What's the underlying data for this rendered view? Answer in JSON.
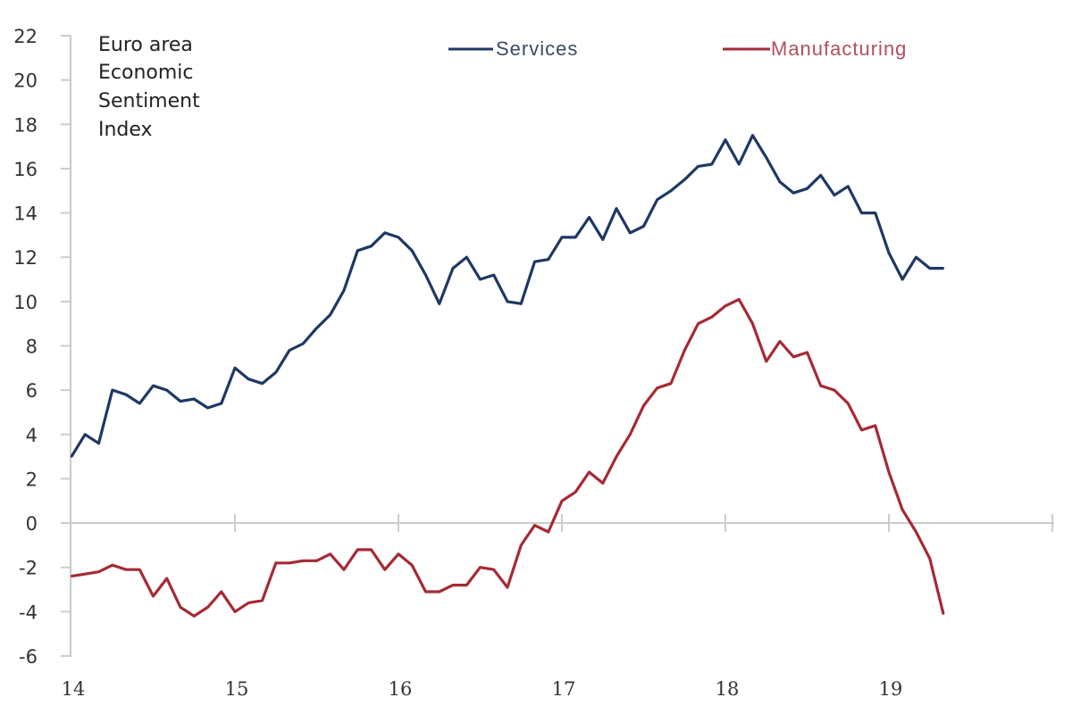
{
  "chart_data": {
    "type": "line",
    "title": [
      "Euro area",
      "Economic",
      "Sentiment",
      "Index"
    ],
    "xlabel": "",
    "ylabel": "",
    "ylim": [
      -6,
      22
    ],
    "yticks": [
      22,
      20,
      18,
      16,
      14,
      12,
      10,
      8,
      6,
      4,
      2,
      0,
      -2,
      -4,
      -6
    ],
    "xlim": [
      2014,
      2020
    ],
    "xticks": [
      {
        "value": 2014,
        "label": "14"
      },
      {
        "value": 2015,
        "label": "15"
      },
      {
        "value": 2016,
        "label": "16"
      },
      {
        "value": 2017,
        "label": "17"
      },
      {
        "value": 2018,
        "label": "18"
      },
      {
        "value": 2019,
        "label": "19"
      }
    ],
    "grid": false,
    "legend": "top",
    "x_start": 2014.0,
    "x_step_months": 1,
    "series": [
      {
        "name": "Services",
        "color": "#1f3864",
        "values": [
          3.0,
          4.0,
          3.6,
          6.0,
          5.8,
          5.4,
          6.2,
          6.0,
          5.5,
          5.6,
          5.2,
          5.4,
          7.0,
          6.5,
          6.3,
          6.8,
          7.8,
          8.1,
          8.8,
          9.4,
          10.5,
          12.3,
          12.5,
          13.1,
          12.9,
          12.3,
          11.2,
          9.9,
          11.5,
          12.0,
          11.0,
          11.2,
          10.0,
          9.9,
          11.8,
          11.9,
          12.9,
          12.9,
          13.8,
          12.8,
          14.2,
          13.1,
          13.4,
          14.6,
          15.0,
          15.5,
          16.1,
          16.2,
          17.3,
          16.2,
          17.5,
          16.5,
          15.4,
          14.9,
          15.1,
          15.7,
          14.8,
          15.2,
          14.0,
          14.0,
          12.2,
          11.0,
          12.0,
          11.5,
          11.5
        ]
      },
      {
        "name": "Manufacturing",
        "color": "#a52a35",
        "values": [
          -2.4,
          -2.3,
          -2.2,
          -1.9,
          -2.1,
          -2.1,
          -3.3,
          -2.5,
          -3.8,
          -4.2,
          -3.8,
          -3.1,
          -4.0,
          -3.6,
          -3.5,
          -1.8,
          -1.8,
          -1.7,
          -1.7,
          -1.4,
          -2.1,
          -1.2,
          -1.2,
          -2.1,
          -1.4,
          -1.9,
          -3.1,
          -3.1,
          -2.8,
          -2.8,
          -2.0,
          -2.1,
          -2.9,
          -1.0,
          -0.1,
          -0.4,
          1.0,
          1.4,
          2.3,
          1.8,
          3.0,
          4.0,
          5.3,
          6.1,
          6.3,
          7.8,
          9.0,
          9.3,
          9.8,
          10.1,
          9.0,
          7.3,
          8.2,
          7.5,
          7.7,
          6.2,
          6.0,
          5.4,
          4.2,
          4.4,
          2.3,
          0.6,
          -0.4,
          -1.6,
          -4.1
        ]
      }
    ]
  },
  "legend": {
    "services_label": "Services",
    "manufacturing_label": "Manufacturing",
    "services_text_color": "#3a4a66",
    "manufacturing_text_color": "#b05060"
  }
}
